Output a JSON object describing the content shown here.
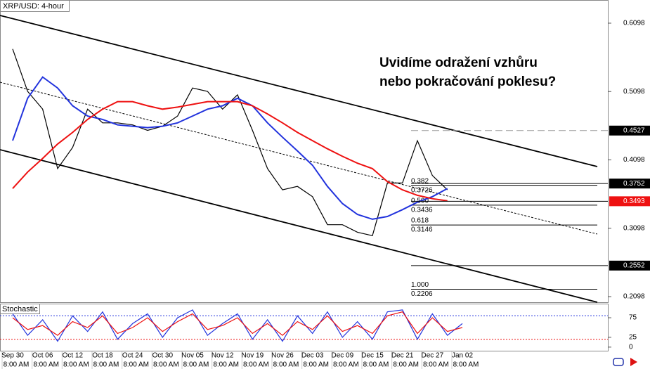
{
  "chart_data": {
    "type": "line",
    "title": "XRP/USD: 4-hour",
    "annotation": [
      "Uvidíme odražení vzhůru",
      "nebo pokračování poklesu?"
    ],
    "categories": [
      "Sep 30",
      null,
      "Oct 06",
      null,
      "Oct 12",
      null,
      "Oct 18",
      null,
      "Oct 24",
      null,
      "Oct 30",
      null,
      "Nov 05",
      null,
      "Nov 12",
      null,
      "Nov 19",
      null,
      "Nov 26",
      null,
      "Dec 03",
      null,
      "Dec 09",
      null,
      "Dec 15",
      null,
      "Dec 21",
      null,
      "Dec 27",
      null,
      "Jan 02"
    ],
    "session_label": "8:00 AM",
    "series": [
      {
        "color": "#000000",
        "values": [
          0.572,
          0.51,
          0.484,
          0.397,
          0.428,
          0.484,
          0.464,
          0.464,
          0.461,
          0.453,
          0.459,
          0.474,
          0.515,
          0.51,
          0.484,
          0.505,
          0.453,
          0.397,
          0.366,
          0.371,
          0.356,
          0.315,
          0.315,
          0.304,
          0.299,
          0.376,
          0.376,
          0.438,
          0.387,
          0.366,
          null
        ]
      },
      {
        "color": "#2233dd",
        "values": [
          0.438,
          0.5,
          0.531,
          0.515,
          0.489,
          0.474,
          0.469,
          0.461,
          0.459,
          0.457,
          0.459,
          0.464,
          0.474,
          0.484,
          0.489,
          0.5,
          0.489,
          0.464,
          0.443,
          0.423,
          0.402,
          0.371,
          0.346,
          0.33,
          0.323,
          0.327,
          0.337,
          0.348,
          0.356,
          0.368,
          null
        ]
      },
      {
        "color": "#ee1111",
        "values": [
          0.368,
          0.392,
          0.412,
          0.433,
          0.45,
          0.469,
          0.484,
          0.495,
          0.495,
          0.489,
          0.484,
          0.487,
          0.491,
          0.495,
          0.495,
          0.495,
          0.489,
          0.477,
          0.464,
          0.45,
          0.438,
          0.426,
          0.415,
          0.405,
          0.397,
          0.378,
          0.366,
          0.358,
          0.353,
          0.35,
          null
        ]
      }
    ],
    "ylim": [
      0.2016,
      0.6437
    ],
    "yticks": [
      0.2098,
      0.3098,
      0.4098,
      0.5098,
      0.6098
    ],
    "price_markers": [
      {
        "value": 0.4527,
        "color": "#000000"
      },
      {
        "value": 0.3752,
        "color": "#000000"
      },
      {
        "value": 0.3493,
        "color": "#ee1111"
      },
      {
        "value": 0.2552,
        "color": "#000000"
      }
    ],
    "channels": [
      {
        "start": 0.6211,
        "end": 0.4,
        "dashed": false
      },
      {
        "start": 0.5234,
        "end": 0.3013,
        "dashed": true
      },
      {
        "start": 0.4247,
        "end": 0.2016,
        "dashed": false
      }
    ],
    "fib_levels": [
      {
        "level": "0.382",
        "value": 0.3726
      },
      {
        "level": "0.500",
        "value": 0.3436
      },
      {
        "level": "0.618",
        "value": 0.3146
      },
      {
        "level": "1.000",
        "value": 0.2206
      }
    ],
    "stochastic": {
      "title": "Stochastic",
      "ylim": [
        -11,
        111
      ],
      "yticks": [
        0,
        25,
        75
      ],
      "levels": [
        {
          "value": 80,
          "color": "#2233dd"
        },
        {
          "value": 20,
          "color": "#ee1111"
        }
      ],
      "series": [
        {
          "color": "#2233dd",
          "values": [
            85,
            30,
            70,
            15,
            80,
            40,
            90,
            20,
            60,
            85,
            25,
            75,
            95,
            30,
            60,
            85,
            20,
            70,
            15,
            80,
            35,
            90,
            25,
            65,
            20,
            90,
            95,
            20,
            85,
            30,
            60
          ]
        },
        {
          "color": "#ee1111",
          "values": [
            75,
            45,
            55,
            30,
            65,
            50,
            80,
            35,
            50,
            75,
            40,
            65,
            85,
            45,
            55,
            75,
            35,
            60,
            30,
            65,
            45,
            80,
            40,
            55,
            35,
            80,
            90,
            35,
            75,
            40,
            50
          ]
        }
      ]
    }
  }
}
